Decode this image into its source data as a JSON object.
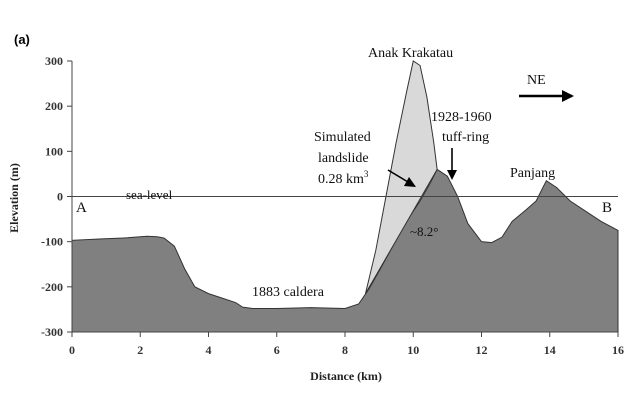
{
  "chart_data": {
    "type": "area",
    "panel_label": "(a)",
    "xlabel": "Distance (km)",
    "ylabel": "Elevation (m)",
    "xlim": [
      0,
      16
    ],
    "ylim": [
      -300,
      300
    ],
    "xticks": [
      0,
      2,
      4,
      6,
      8,
      10,
      12,
      14,
      16
    ],
    "yticks": [
      300,
      200,
      100,
      0,
      -100,
      -200,
      -300
    ],
    "grid": false,
    "series": [
      {
        "name": "",
        "color": "#808080",
        "x": [
          0,
          0.8,
          1.5,
          2.2,
          2.5,
          2.7,
          3.0,
          3.3,
          3.6,
          4.0,
          4.4,
          4.8,
          5.0,
          5.3,
          6.0,
          7.0,
          8.0,
          8.4,
          8.7,
          9.0,
          9.4,
          9.8,
          10.2,
          10.5,
          10.7,
          11.0,
          11.3,
          11.6,
          12.0,
          12.3,
          12.6,
          12.9,
          13.3,
          13.6,
          13.9,
          14.2,
          14.6,
          15.0,
          15.5,
          16.0
        ],
        "y": [
          -97,
          -94,
          -92,
          -88,
          -89,
          -92,
          -110,
          -160,
          -200,
          -215,
          -225,
          -235,
          -245,
          -248,
          -248,
          -246,
          -248,
          -238,
          -205,
          -165,
          -110,
          -55,
          -10,
          30,
          60,
          45,
          0,
          -60,
          -100,
          -102,
          -90,
          -55,
          -30,
          -10,
          35,
          20,
          -10,
          -30,
          -55,
          -75
        ]
      },
      {
        "name": "",
        "color": "#d9d9d9",
        "x": [
          8.6,
          8.9,
          9.2,
          9.5,
          9.8,
          10.0,
          10.2,
          10.4,
          10.6,
          10.7
        ],
        "y": [
          -215,
          -120,
          0,
          120,
          230,
          300,
          290,
          220,
          120,
          60
        ]
      }
    ],
    "reference_lines": [
      {
        "y": 0,
        "label": "sea-level"
      }
    ],
    "endpoints": {
      "left": "A",
      "right": "B"
    },
    "annotations": {
      "peak": "Anak Krakatau",
      "direction": "NE",
      "tuff_ring_line1": "1928-1960",
      "tuff_ring_line2": "tuff-ring",
      "landslide_line1": "Simulated",
      "landslide_line2": "landslide",
      "landslide_line3": "0.28 km",
      "landslide_sup": "3",
      "slope": "~8.2°",
      "panjang": "Panjang",
      "caldera": "1883 caldera"
    }
  }
}
